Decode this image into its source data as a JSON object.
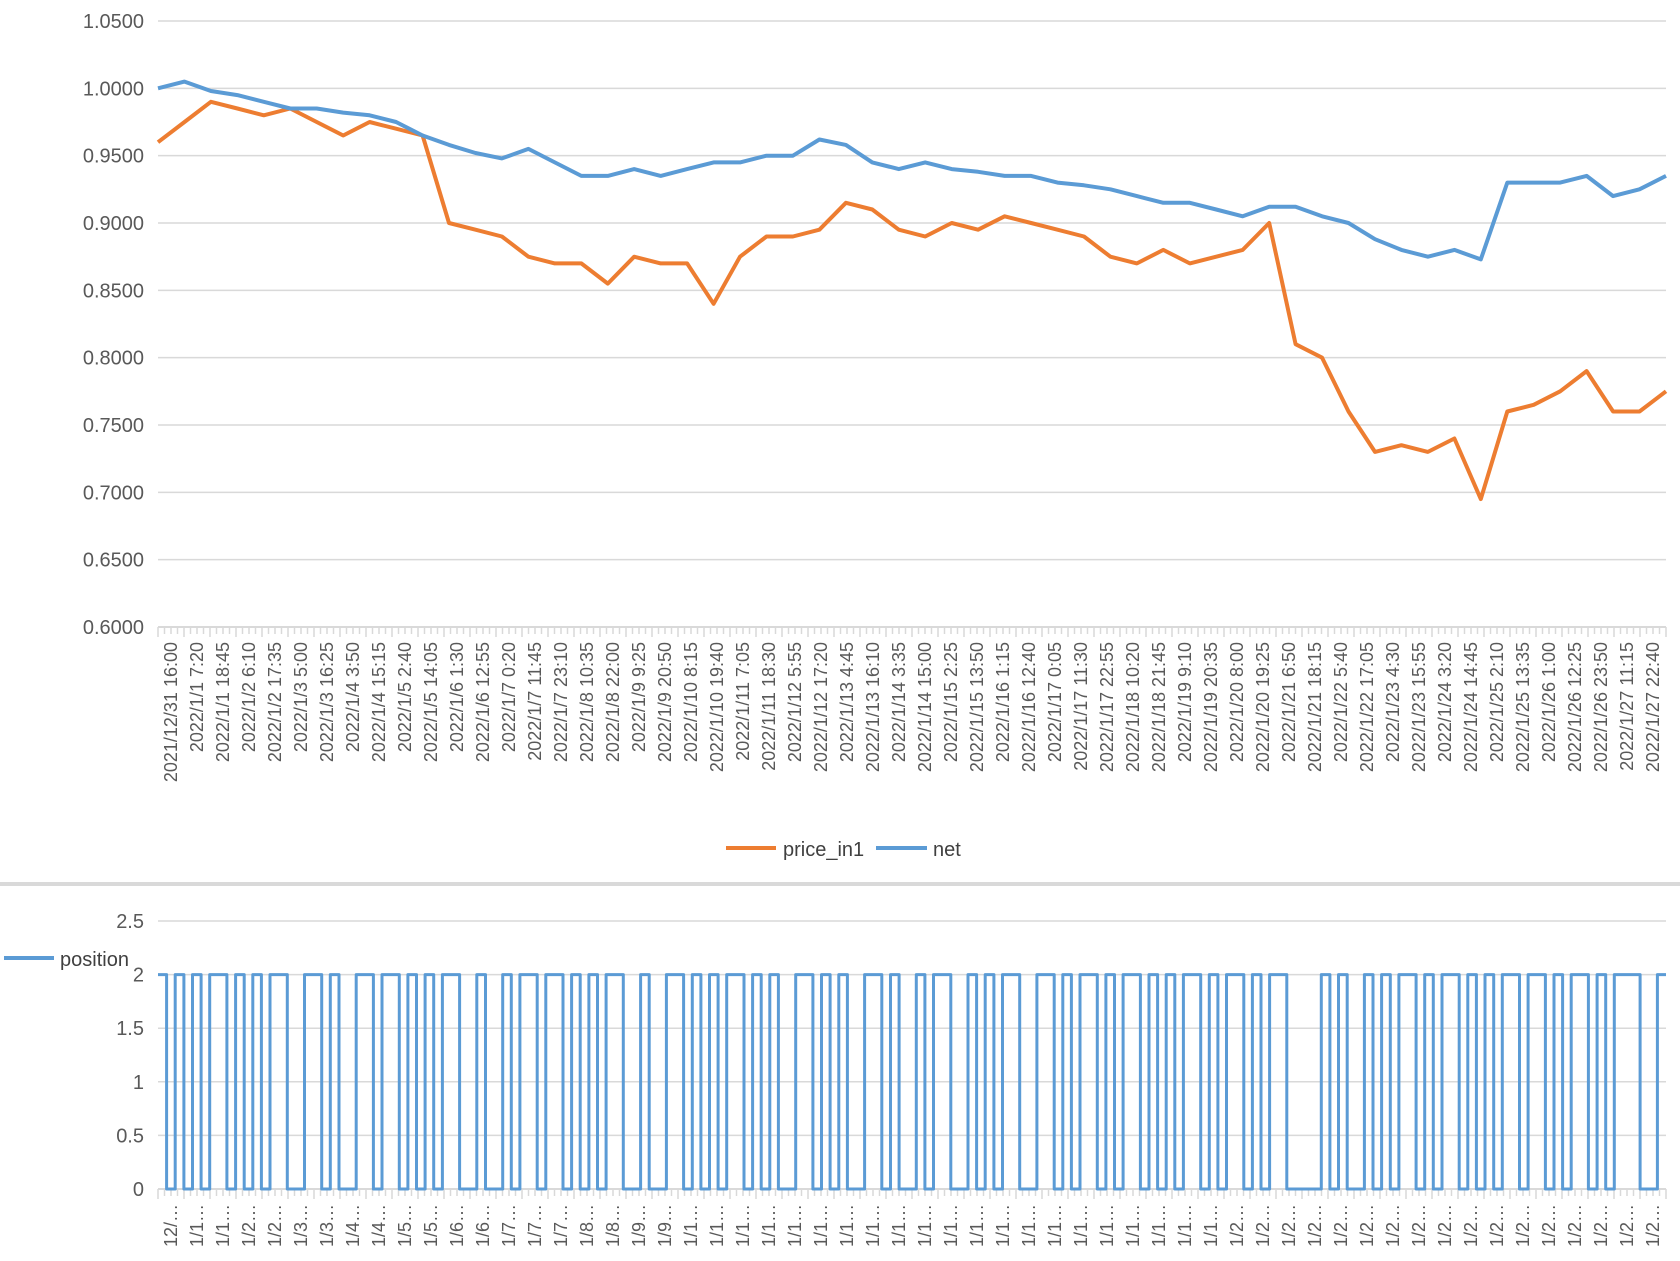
{
  "colors": {
    "price": "#ed7d31",
    "net": "#5b9bd5",
    "position": "#5b9bd5",
    "grid": "#d9d9d9",
    "axis_text": "#595959",
    "divider": "#d9d9d9"
  },
  "chart_data": [
    {
      "type": "line",
      "title": "",
      "xlabel": "",
      "ylabel": "",
      "ylim": [
        0.6,
        1.05
      ],
      "y_ticks": [
        "1.0500",
        "1.0000",
        "0.9500",
        "0.9000",
        "0.8500",
        "0.8000",
        "0.7500",
        "0.7000",
        "0.6500",
        "0.6000"
      ],
      "grid": true,
      "legend_placement": "bottom",
      "x_tick_labels": [
        "2021/12/31 16:00",
        "2022/1/1 7:20",
        "2022/1/1 18:45",
        "2022/1/2 6:10",
        "2022/1/2 17:35",
        "2022/1/3 5:00",
        "2022/1/3 16:25",
        "2022/1/4 3:50",
        "2022/1/4 15:15",
        "2022/1/5 2:40",
        "2022/1/5 14:05",
        "2022/1/6 1:30",
        "2022/1/6 12:55",
        "2022/1/7 0:20",
        "2022/1/7 11:45",
        "2022/1/7 23:10",
        "2022/1/8 10:35",
        "2022/1/8 22:00",
        "2022/1/9 9:25",
        "2022/1/9 20:50",
        "2022/1/10 8:15",
        "2022/1/10 19:40",
        "2022/1/11 7:05",
        "2022/1/11 18:30",
        "2022/1/12 5:55",
        "2022/1/12 17:20",
        "2022/1/13 4:45",
        "2022/1/13 16:10",
        "2022/1/14 3:35",
        "2022/1/14 15:00",
        "2022/1/15 2:25",
        "2022/1/15 13:50",
        "2022/1/16 1:15",
        "2022/1/16 12:40",
        "2022/1/17 0:05",
        "2022/1/17 11:30",
        "2022/1/17 22:55",
        "2022/1/18 10:20",
        "2022/1/18 21:45",
        "2022/1/19 9:10",
        "2022/1/19 20:35",
        "2022/1/20 8:00",
        "2022/1/20 19:25",
        "2022/1/21 6:50",
        "2022/1/21 18:15",
        "2022/1/22 5:40",
        "2022/1/22 17:05",
        "2022/1/23 4:30",
        "2022/1/23 15:55",
        "2022/1/24 3:20",
        "2022/1/24 14:45",
        "2022/1/25 2:10",
        "2022/1/25 13:35",
        "2022/1/26 1:00",
        "2022/1/26 12:25",
        "2022/1/26 23:50",
        "2022/1/27 11:15",
        "2022/1/27 22:40"
      ],
      "series": [
        {
          "name": "price_in1",
          "values": [
            0.96,
            0.975,
            0.99,
            0.985,
            0.98,
            0.985,
            0.975,
            0.965,
            0.975,
            0.97,
            0.965,
            0.9,
            0.895,
            0.89,
            0.875,
            0.87,
            0.87,
            0.855,
            0.875,
            0.87,
            0.87,
            0.84,
            0.875,
            0.89,
            0.89,
            0.895,
            0.915,
            0.91,
            0.895,
            0.89,
            0.9,
            0.895,
            0.905,
            0.9,
            0.895,
            0.89,
            0.875,
            0.87,
            0.88,
            0.87,
            0.875,
            0.88,
            0.9,
            0.81,
            0.8,
            0.76,
            0.73,
            0.735,
            0.73,
            0.74,
            0.695,
            0.76,
            0.765,
            0.775,
            0.79,
            0.76,
            0.76,
            0.775
          ]
        },
        {
          "name": "net",
          "values": [
            1.0,
            1.005,
            0.998,
            0.995,
            0.99,
            0.985,
            0.985,
            0.982,
            0.98,
            0.975,
            0.965,
            0.958,
            0.952,
            0.948,
            0.955,
            0.945,
            0.935,
            0.935,
            0.94,
            0.935,
            0.94,
            0.945,
            0.945,
            0.95,
            0.95,
            0.962,
            0.958,
            0.945,
            0.94,
            0.945,
            0.94,
            0.938,
            0.935,
            0.935,
            0.93,
            0.928,
            0.925,
            0.92,
            0.915,
            0.915,
            0.91,
            0.905,
            0.912,
            0.912,
            0.905,
            0.9,
            0.888,
            0.88,
            0.875,
            0.88,
            0.873,
            0.93,
            0.93,
            0.93,
            0.935,
            0.92,
            0.925,
            0.935
          ]
        }
      ]
    },
    {
      "type": "line",
      "title": "",
      "xlabel": "",
      "ylabel": "",
      "ylim": [
        0,
        2.5
      ],
      "y_ticks": [
        "2.5",
        "2",
        "1.5",
        "1",
        "0.5",
        "0"
      ],
      "grid": true,
      "legend_placement": "left",
      "x_tick_labels": [
        "12/…",
        "1/1…",
        "1/1…",
        "1/2…",
        "1/2…",
        "1/3…",
        "1/3…",
        "1/4…",
        "1/4…",
        "1/5…",
        "1/5…",
        "1/6…",
        "1/6…",
        "1/7…",
        "1/7…",
        "1/7…",
        "1/8…",
        "1/8…",
        "1/9…",
        "1/9…",
        "1/1…",
        "1/1…",
        "1/1…",
        "1/1…",
        "1/1…",
        "1/1…",
        "1/1…",
        "1/1…",
        "1/1…",
        "1/1…",
        "1/1…",
        "1/1…",
        "1/1…",
        "1/1…",
        "1/1…",
        "1/1…",
        "1/1…",
        "1/1…",
        "1/1…",
        "1/1…",
        "1/1…",
        "1/2…",
        "1/2…",
        "1/2…",
        "1/2…",
        "1/2…",
        "1/2…",
        "1/2…",
        "1/2…",
        "1/2…",
        "1/2…",
        "1/2…",
        "1/2…",
        "1/2…",
        "1/2…",
        "1/2…",
        "1/2…",
        "1/2…"
      ],
      "series": [
        {
          "name": "position",
          "values": [
            2,
            0,
            2,
            0,
            2,
            0,
            2,
            2,
            0,
            2,
            0,
            2,
            0,
            2,
            2,
            0,
            0,
            2,
            2,
            0,
            2,
            0,
            0,
            2,
            2,
            0,
            2,
            2,
            0,
            2,
            0,
            2,
            0,
            2,
            2,
            0,
            0,
            2,
            0,
            0,
            2,
            0,
            2,
            2,
            0,
            2,
            2,
            0,
            2,
            0,
            2,
            0,
            2,
            2,
            0,
            0,
            2,
            0,
            0,
            2,
            2,
            0,
            2,
            0,
            2,
            0,
            2,
            2,
            0,
            2,
            0,
            2,
            0,
            0,
            2,
            2,
            0,
            2,
            0,
            2,
            0,
            0,
            2,
            2,
            0,
            2,
            0,
            0,
            2,
            0,
            2,
            2,
            0,
            0,
            2,
            0,
            2,
            0,
            2,
            2,
            0,
            0,
            2,
            2,
            0,
            2,
            0,
            2,
            2,
            0,
            2,
            0,
            2,
            2,
            0,
            2,
            0,
            2,
            0,
            2,
            2,
            0,
            2,
            0,
            2,
            2,
            0,
            2,
            0,
            2,
            2,
            0,
            0,
            0,
            0,
            2,
            0,
            2,
            0,
            0,
            2,
            0,
            2,
            0,
            2,
            2,
            0,
            2,
            0,
            2,
            2,
            0,
            2,
            0,
            2,
            0,
            2,
            2,
            0,
            2,
            2,
            0,
            2,
            0,
            2,
            2,
            0,
            2,
            0,
            2,
            2,
            2,
            0,
            0,
            2,
            2
          ]
        }
      ]
    }
  ]
}
